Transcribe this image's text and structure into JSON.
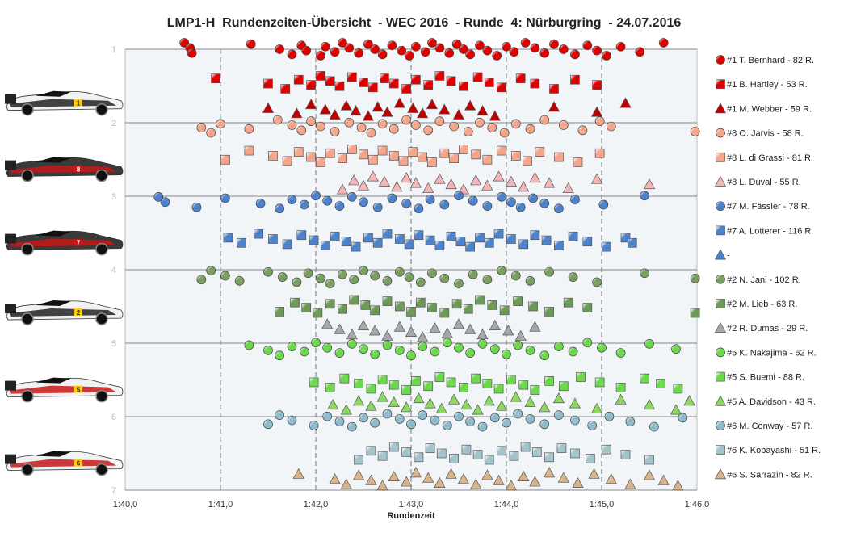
{
  "chart_data": {
    "type": "scatter",
    "title": "LMP1-H  Rundenzeiten-Übersicht  - WEC 2016  - Runde  4: Nürburgring  - 24.07.2016",
    "xlabel": "Rundenzeit",
    "ylabel": "",
    "x_ticks": [
      "1:40,0",
      "1:41,0",
      "1:42,0",
      "1:43,0",
      "1:44,0",
      "1:45,0",
      "1:46,0"
    ],
    "xlim_seconds": [
      100,
      106
    ],
    "y_ticks": [
      "1",
      "2",
      "3",
      "4",
      "5",
      "6",
      "7"
    ],
    "ylim": [
      1,
      7
    ],
    "grid": "vertical dashed, horizontal solid",
    "legend_position": "right",
    "background": "#f2f5f7",
    "series": [
      {
        "name": "#1 T. Bernhard - 82 R.",
        "marker": "circle",
        "color": "#e00000",
        "row": 1.0,
        "x": [
          100.62,
          100.68,
          100.7,
          101.32,
          101.62,
          101.75,
          101.85,
          101.9,
          102.05,
          102.1,
          102.2,
          102.28,
          102.35,
          102.45,
          102.55,
          102.62,
          102.7,
          102.8,
          102.9,
          102.98,
          103.05,
          103.15,
          103.22,
          103.3,
          103.4,
          103.48,
          103.55,
          103.62,
          103.72,
          103.8,
          103.9,
          104.0,
          104.08,
          104.2,
          104.3,
          104.4,
          104.5,
          104.6,
          104.72,
          104.85,
          104.95,
          105.05,
          105.2,
          105.4,
          105.65
        ]
      },
      {
        "name": "#1 B. Hartley - 53 R.",
        "marker": "square",
        "color": "#e00000",
        "row": 1.45,
        "x": [
          100.95,
          101.5,
          101.68,
          101.82,
          101.95,
          102.05,
          102.15,
          102.25,
          102.38,
          102.5,
          102.6,
          102.72,
          102.82,
          102.95,
          103.05,
          103.18,
          103.3,
          103.42,
          103.55,
          103.7,
          103.82,
          103.95,
          104.15,
          104.3,
          104.5,
          104.72,
          104.95
        ]
      },
      {
        "name": "#1 M. Webber - 59 R.",
        "marker": "triangle",
        "color": "#c00000",
        "row": 1.82,
        "x": [
          101.5,
          101.8,
          101.95,
          102.1,
          102.2,
          102.32,
          102.42,
          102.55,
          102.65,
          102.75,
          102.88,
          103.02,
          103.12,
          103.22,
          103.35,
          103.5,
          103.62,
          103.75,
          103.88,
          104.5,
          104.95,
          105.25
        ]
      },
      {
        "name": "#8 O. Jarvis - 58 R.",
        "marker": "circle",
        "color": "#f4a58a",
        "row": 2.05,
        "x": [
          100.8,
          100.9,
          101.0,
          101.3,
          101.6,
          101.75,
          101.85,
          101.95,
          102.05,
          102.2,
          102.35,
          102.48,
          102.58,
          102.7,
          102.82,
          102.95,
          103.05,
          103.18,
          103.3,
          103.45,
          103.6,
          103.72,
          103.85,
          103.98,
          104.1,
          104.25,
          104.4,
          104.6,
          104.8,
          104.98,
          105.1,
          105.98
        ]
      },
      {
        "name": "#8 L. di Grassi - 81 R.",
        "marker": "square",
        "color": "#f4a58a",
        "row": 2.45,
        "x": [
          101.05,
          101.3,
          101.55,
          101.7,
          101.82,
          101.95,
          102.05,
          102.15,
          102.28,
          102.38,
          102.5,
          102.6,
          102.7,
          102.82,
          102.92,
          103.02,
          103.12,
          103.22,
          103.35,
          103.45,
          103.55,
          103.68,
          103.8,
          103.95,
          104.1,
          104.22,
          104.35,
          104.55,
          104.75,
          104.98
        ]
      },
      {
        "name": "#8 L. Duval - 55 R.",
        "marker": "triangle",
        "color": "#f2b5b8",
        "row": 2.82,
        "x": [
          102.28,
          102.4,
          102.5,
          102.6,
          102.72,
          102.85,
          102.95,
          103.05,
          103.18,
          103.3,
          103.42,
          103.55,
          103.68,
          103.8,
          103.92,
          104.05,
          104.18,
          104.3,
          104.45,
          104.65,
          104.95,
          105.5
        ]
      },
      {
        "name": "#7 M. Fässler - 78 R.",
        "marker": "circle",
        "color": "#4d82cc",
        "row": 3.08,
        "x": [
          100.35,
          100.42,
          100.75,
          101.05,
          101.42,
          101.62,
          101.75,
          101.88,
          102.0,
          102.12,
          102.25,
          102.38,
          102.5,
          102.65,
          102.8,
          102.95,
          103.08,
          103.2,
          103.35,
          103.5,
          103.65,
          103.8,
          103.95,
          104.05,
          104.15,
          104.28,
          104.4,
          104.55,
          104.72,
          105.02,
          105.45
        ]
      },
      {
        "name": "#7 A. Lotterer - 116 R.",
        "marker": "square",
        "color": "#4d82cc",
        "row": 3.6,
        "x": [
          101.08,
          101.22,
          101.4,
          101.55,
          101.7,
          101.85,
          101.98,
          102.1,
          102.2,
          102.32,
          102.42,
          102.55,
          102.65,
          102.75,
          102.88,
          102.98,
          103.08,
          103.2,
          103.3,
          103.42,
          103.52,
          103.62,
          103.72,
          103.82,
          103.92,
          104.05,
          104.18,
          104.3,
          104.42,
          104.55,
          104.7,
          104.85,
          105.05,
          105.25,
          105.32
        ]
      },
      {
        "name": "-",
        "marker": "triangle",
        "color": "#4d82cc",
        "row": null,
        "x": []
      },
      {
        "name": "#2 N. Jani - 102 R.",
        "marker": "circle",
        "color": "#7aa060",
        "row": 4.1,
        "x": [
          100.8,
          100.9,
          101.05,
          101.2,
          101.5,
          101.65,
          101.8,
          101.92,
          102.05,
          102.15,
          102.28,
          102.4,
          102.5,
          102.62,
          102.75,
          102.88,
          102.98,
          103.1,
          103.22,
          103.35,
          103.5,
          103.65,
          103.8,
          103.95,
          104.1,
          104.25,
          104.45,
          104.7,
          104.95,
          105.45,
          105.98
        ]
      },
      {
        "name": "#2 M. Lieb - 63 R.",
        "marker": "square",
        "color": "#6e9a58",
        "row": 4.5,
        "x": [
          101.62,
          101.78,
          101.9,
          102.02,
          102.15,
          102.28,
          102.4,
          102.52,
          102.62,
          102.75,
          102.88,
          103.0,
          103.1,
          103.22,
          103.35,
          103.48,
          103.6,
          103.72,
          103.85,
          103.98,
          104.12,
          104.28,
          104.45,
          104.65,
          104.85,
          105.98
        ]
      },
      {
        "name": "#2 R. Dumas - 29 R.",
        "marker": "triangle",
        "color": "#a8a8a8",
        "row": 4.83,
        "x": [
          102.12,
          102.25,
          102.38,
          102.5,
          102.62,
          102.75,
          102.88,
          103.0,
          103.12,
          103.25,
          103.38,
          103.5,
          103.62,
          103.75,
          103.88,
          104.02,
          104.15,
          104.3
        ]
      },
      {
        "name": "#5 K. Nakajima - 62 R.",
        "marker": "circle",
        "color": "#6cd84c",
        "row": 5.08,
        "x": [
          101.3,
          101.5,
          101.62,
          101.75,
          101.88,
          102.0,
          102.12,
          102.25,
          102.38,
          102.5,
          102.62,
          102.75,
          102.88,
          103.0,
          103.12,
          103.25,
          103.38,
          103.5,
          103.62,
          103.75,
          103.88,
          104.0,
          104.12,
          104.25,
          104.4,
          104.55,
          104.7,
          104.85,
          105.0,
          105.2,
          105.5,
          105.78
        ]
      },
      {
        "name": "#5 S. Buemi - 88 R.",
        "marker": "square",
        "color": "#6cd84c",
        "row": 5.55,
        "x": [
          101.98,
          102.15,
          102.3,
          102.45,
          102.58,
          102.7,
          102.82,
          102.95,
          103.05,
          103.18,
          103.3,
          103.42,
          103.55,
          103.68,
          103.8,
          103.92,
          104.05,
          104.18,
          104.3,
          104.45,
          104.6,
          104.78,
          104.98,
          105.2,
          105.45,
          105.62,
          105.8
        ]
      },
      {
        "name": "#5 A. Davidson - 43 R.",
        "marker": "triangle",
        "color": "#8cd860",
        "row": 5.82,
        "x": [
          102.18,
          102.32,
          102.45,
          102.58,
          102.7,
          102.82,
          102.95,
          103.08,
          103.2,
          103.32,
          103.45,
          103.58,
          103.7,
          103.82,
          103.95,
          104.1,
          104.25,
          104.4,
          104.55,
          104.72,
          104.95,
          105.2,
          105.5,
          105.78,
          105.92
        ]
      },
      {
        "name": "#6 M. Conway - 57 R.",
        "marker": "circle",
        "color": "#8ebccc",
        "row": 6.05,
        "x": [
          101.5,
          101.62,
          101.75,
          101.98,
          102.12,
          102.25,
          102.38,
          102.5,
          102.62,
          102.75,
          102.88,
          103.0,
          103.12,
          103.25,
          103.38,
          103.5,
          103.62,
          103.75,
          103.88,
          104.0,
          104.12,
          104.25,
          104.4,
          104.55,
          104.72,
          104.9,
          105.08,
          105.3,
          105.55,
          105.85
        ]
      },
      {
        "name": "#6 K. Kobayashi - 51 R.",
        "marker": "square",
        "color": "#a4c4cc",
        "row": 6.5,
        "x": [
          102.45,
          102.58,
          102.7,
          102.82,
          102.95,
          103.08,
          103.2,
          103.32,
          103.45,
          103.58,
          103.7,
          103.82,
          103.95,
          104.08,
          104.2,
          104.32,
          104.45,
          104.58,
          104.72,
          104.88,
          105.05,
          105.25,
          105.5
        ]
      },
      {
        "name": "#6 S. Sarrazin - 82 R.",
        "marker": "triangle",
        "color": "#d9b48a",
        "row": 6.85,
        "x": [
          101.82,
          102.2,
          102.32,
          102.45,
          102.58,
          102.7,
          102.82,
          102.95,
          103.05,
          103.18,
          103.3,
          103.42,
          103.55,
          103.68,
          103.8,
          103.92,
          104.05,
          104.18,
          104.3,
          104.45,
          104.6,
          104.75,
          104.92,
          105.1,
          105.3,
          105.5,
          105.65,
          105.8
        ]
      }
    ]
  },
  "colors": {
    "plot_bg": "#f2f5f7",
    "grid": "#888888",
    "car_white": "#ffffff",
    "car_dark": "#222222",
    "car_red": "#d01818"
  },
  "cars": [
    {
      "label": "1",
      "livery": "porsche"
    },
    {
      "label": "8",
      "livery": "audi"
    },
    {
      "label": "7",
      "livery": "audi"
    },
    {
      "label": "2",
      "livery": "porsche"
    },
    {
      "label": "5",
      "livery": "toyota"
    },
    {
      "label": "6",
      "livery": "toyota"
    }
  ]
}
